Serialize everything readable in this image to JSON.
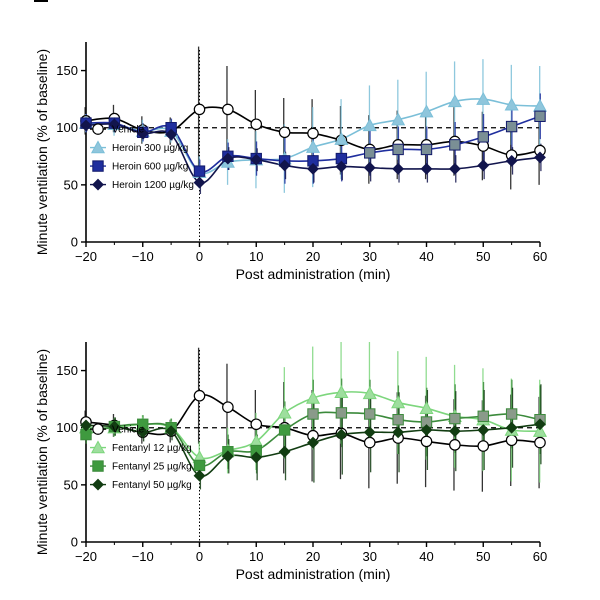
{
  "chart_data": [
    {
      "type": "line",
      "xlabel": "Post administration (min)",
      "ylabel": "Minute ventilation (% of baseline)",
      "xlim": [
        -20,
        60
      ],
      "ylim": [
        0,
        175
      ],
      "xticks": [
        -20,
        -10,
        0,
        10,
        20,
        30,
        40,
        50,
        60
      ],
      "yticks": [
        0,
        50,
        100,
        150
      ],
      "xtick_labels": [
        "−20",
        "−10",
        "0",
        "10",
        "20",
        "30",
        "40",
        "50",
        "60"
      ],
      "ytick_labels": [
        "0",
        "50",
        "100",
        "150"
      ],
      "baseline": 100,
      "event_x": 0,
      "legend_position": "lower-left",
      "series": [
        {
          "name": "Vehicle",
          "color": "#000000",
          "marker": "circle",
          "fill": "#ffffff",
          "x": [
            -20,
            -15,
            -10,
            -5,
            0,
            5,
            10,
            15,
            20,
            25,
            30,
            35,
            40,
            45,
            50,
            55,
            60
          ],
          "values": [
            106,
            108,
            98,
            97,
            116,
            116,
            103,
            96,
            95,
            89,
            81,
            85,
            85,
            88,
            84,
            76,
            80
          ],
          "errors": [
            12,
            12,
            12,
            12,
            55,
            38,
            30,
            30,
            30,
            30,
            30,
            30,
            30,
            30,
            30,
            30,
            30
          ]
        },
        {
          "name": "Heroin 300 µg/kg",
          "color": "#7bbfd8",
          "marker": "triangle",
          "fill": "#8fc6dc",
          "x": [
            -20,
            -15,
            -10,
            -5,
            0,
            5,
            10,
            15,
            20,
            25,
            30,
            35,
            40,
            45,
            50,
            55,
            60
          ],
          "values": [
            104,
            103,
            97,
            97,
            61,
            70,
            72,
            73,
            83,
            90,
            102,
            107,
            114,
            123,
            125,
            120,
            119
          ],
          "errors": [
            8,
            10,
            10,
            10,
            14,
            20,
            25,
            30,
            35,
            35,
            35,
            35,
            35,
            35,
            35,
            35,
            35
          ]
        },
        {
          "name": "Heroin 600 µg/kg",
          "color": "#1f2e9e",
          "marker": "square",
          "fill": "#1f2e9e",
          "edge": "#121a6b",
          "x": [
            -20,
            -15,
            -10,
            -5,
            0,
            5,
            10,
            15,
            20,
            25,
            30,
            35,
            40,
            45,
            50,
            55,
            60
          ],
          "values": [
            104,
            104,
            96,
            100,
            62,
            75,
            73,
            71,
            71,
            73,
            78,
            81,
            81,
            85,
            92,
            101,
            110
          ],
          "errors": [
            8,
            8,
            8,
            8,
            10,
            12,
            15,
            20,
            20,
            20,
            20,
            20,
            20,
            20,
            20,
            20,
            20
          ],
          "marker_overrides": {
            "fill_last": "#7a8f95",
            "from_x": 30
          }
        },
        {
          "name": "Heroin 1200 µg/kg",
          "color": "#12154d",
          "marker": "diamond",
          "fill": "#12154d",
          "x": [
            -20,
            -15,
            -10,
            -5,
            0,
            5,
            10,
            15,
            20,
            25,
            30,
            35,
            40,
            45,
            50,
            55,
            60
          ],
          "values": [
            102,
            103,
            95,
            94,
            52,
            73,
            72,
            67,
            64,
            66,
            65,
            64,
            64,
            64,
            67,
            71,
            74
          ],
          "errors": [
            5,
            5,
            5,
            5,
            10,
            10,
            10,
            12,
            12,
            12,
            12,
            12,
            12,
            12,
            12,
            12,
            12
          ]
        }
      ],
      "legend": [
        "Vehicle",
        "Heroin 300 µg/kg",
        "Heroin 600 µg/kg",
        "Heroin 1200 µg/kg"
      ]
    },
    {
      "type": "line",
      "xlabel": "Post administration (min)",
      "ylabel": "Minute ventilation (% of baseline)",
      "xlim": [
        -20,
        60
      ],
      "ylim": [
        0,
        175
      ],
      "xticks": [
        -20,
        -10,
        0,
        10,
        20,
        30,
        40,
        50,
        60
      ],
      "yticks": [
        0,
        50,
        100,
        150
      ],
      "xtick_labels": [
        "−20",
        "−10",
        "0",
        "10",
        "20",
        "30",
        "40",
        "50",
        "60"
      ],
      "ytick_labels": [
        "0",
        "50",
        "100",
        "150"
      ],
      "baseline": 100,
      "event_x": 0,
      "legend_position": "lower-left",
      "series": [
        {
          "name": "Vehicle",
          "color": "#000000",
          "marker": "circle",
          "fill": "#ffffff",
          "x": [
            -20,
            -15,
            -10,
            -5,
            0,
            5,
            10,
            15,
            20,
            25,
            30,
            35,
            40,
            45,
            50,
            55,
            60
          ],
          "values": [
            105,
            102,
            96,
            97,
            128,
            118,
            103,
            100,
            93,
            95,
            87,
            91,
            88,
            85,
            84,
            89,
            87
          ],
          "errors": [
            10,
            10,
            10,
            10,
            42,
            38,
            30,
            40,
            40,
            40,
            40,
            40,
            40,
            40,
            40,
            40,
            40
          ]
        },
        {
          "name": "Fentanyl 12 µg/kg",
          "color": "#7dd67d",
          "marker": "triangle",
          "fill": "#9ede9e",
          "x": [
            -20,
            -15,
            -10,
            -5,
            0,
            5,
            10,
            15,
            20,
            25,
            30,
            35,
            40,
            45,
            50,
            55,
            60
          ],
          "values": [
            100,
            100,
            103,
            100,
            74,
            80,
            88,
            113,
            126,
            131,
            130,
            122,
            117,
            110,
            107,
            98,
            97
          ],
          "errors": [
            8,
            8,
            8,
            8,
            14,
            20,
            25,
            40,
            45,
            45,
            45,
            45,
            45,
            45,
            45,
            45,
            45
          ]
        },
        {
          "name": "Fentanyl 25 µg/kg",
          "color": "#3b8a3b",
          "marker": "square",
          "fill": "#3f9a3f",
          "x": [
            -20,
            -15,
            -10,
            -5,
            0,
            5,
            10,
            15,
            20,
            25,
            30,
            35,
            40,
            45,
            50,
            55,
            60
          ],
          "values": [
            94,
            101,
            103,
            100,
            67,
            79,
            80,
            98,
            112,
            113,
            112,
            107,
            105,
            108,
            110,
            112,
            107
          ],
          "errors": [
            8,
            8,
            8,
            8,
            12,
            15,
            20,
            25,
            30,
            30,
            30,
            30,
            30,
            30,
            30,
            30,
            30
          ],
          "marker_overrides": {
            "fill_last": "#8a9a8a",
            "from_x": 20
          }
        },
        {
          "name": "Fentanyl 50 µg/kg",
          "color": "#123d12",
          "marker": "diamond",
          "fill": "#123d12",
          "x": [
            -20,
            -15,
            -10,
            -5,
            0,
            5,
            10,
            15,
            20,
            25,
            30,
            35,
            40,
            45,
            50,
            55,
            60
          ],
          "values": [
            102,
            101,
            96,
            97,
            58,
            75,
            74,
            79,
            87,
            94,
            96,
            96,
            98,
            97,
            98,
            100,
            103
          ],
          "errors": [
            8,
            8,
            8,
            8,
            12,
            15,
            20,
            25,
            35,
            35,
            35,
            35,
            35,
            35,
            35,
            35,
            35
          ]
        }
      ],
      "legend": [
        "Vehicle",
        "Fentanyl 12 µg/kg",
        "Fentanyl 25 µg/kg",
        "Fentanyl 50 µg/kg"
      ]
    }
  ]
}
